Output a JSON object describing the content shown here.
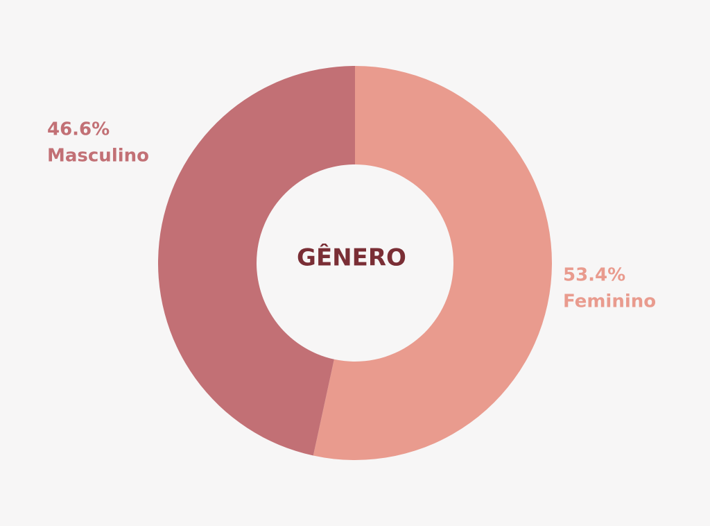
{
  "chart_data": {
    "type": "pie",
    "title": "GÊNERO",
    "categories": [
      "Feminino",
      "Masculino"
    ],
    "values": [
      53.4,
      46.6
    ],
    "value_labels": [
      "53.4%",
      "46.6%"
    ],
    "colors": [
      "#e99b8e",
      "#c27075"
    ]
  }
}
